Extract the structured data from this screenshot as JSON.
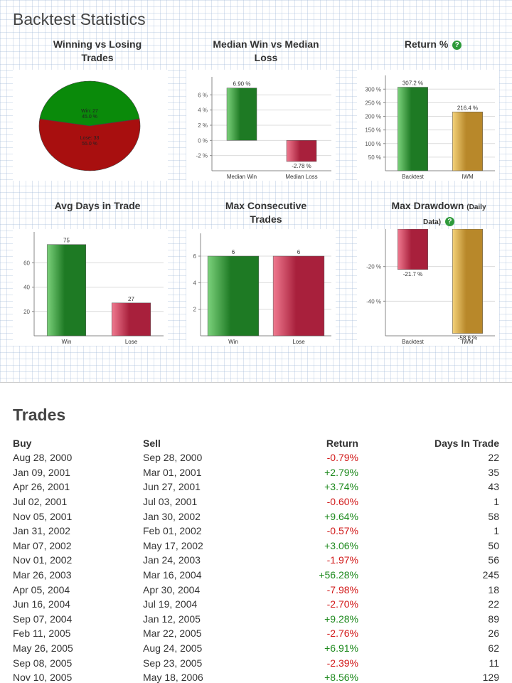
{
  "backtest": {
    "title": "Backtest Statistics",
    "help_symbol": "?",
    "charts": [
      {
        "key": "winlose",
        "title_line1": "Winning vs Losing",
        "title_line2": "Trades",
        "chart_data": {
          "type": "pie",
          "slices": [
            {
              "label": "Win: 27",
              "sub": "45.0 %",
              "value": 45.0,
              "color": "#0a8a0a"
            },
            {
              "label": "Lose: 33",
              "sub": "55.0 %",
              "value": 55.0,
              "color": "#a80f0f"
            }
          ]
        }
      },
      {
        "key": "median",
        "title_line1": "Median Win vs Median",
        "title_line2": "Loss",
        "chart_data": {
          "type": "bar",
          "categories": [
            "Median Win",
            "Median Loss"
          ],
          "values": [
            6.9,
            -2.78
          ],
          "value_labels": [
            "6.90 %",
            "-2.78 %"
          ],
          "ylim": [
            -4,
            8
          ],
          "ticks": [
            6,
            4,
            2,
            0,
            -2
          ],
          "tick_labels": [
            "6 %",
            "4 %",
            "2 %",
            "0 %",
            "-2 %"
          ]
        }
      },
      {
        "key": "return",
        "title_line1": "Return %",
        "title_line2": "",
        "chart_data": {
          "type": "bar",
          "categories": [
            "Backtest",
            "IWM"
          ],
          "values": [
            307.2,
            216.4
          ],
          "value_labels": [
            "307.2 %",
            "216.4 %"
          ],
          "ylim": [
            0,
            340
          ],
          "ticks": [
            300,
            250,
            200,
            150,
            100,
            50
          ],
          "tick_labels": [
            "300 %",
            "250 %",
            "200 %",
            "150 %",
            "100 %",
            "50 %"
          ]
        }
      },
      {
        "key": "avgdays",
        "title_line1": "Avg Days in Trade",
        "title_line2": "",
        "chart_data": {
          "type": "bar",
          "categories": [
            "Win",
            "Lose"
          ],
          "values": [
            75,
            27
          ],
          "value_labels": [
            "75",
            "27"
          ],
          "ylim": [
            0,
            83
          ],
          "ticks": [
            60,
            40,
            20
          ],
          "tick_labels": [
            "60",
            "40",
            "20"
          ]
        }
      },
      {
        "key": "consec",
        "title_line1": "Max Consecutive",
        "title_line2": "Trades",
        "chart_data": {
          "type": "bar",
          "categories": [
            "Win",
            "Lose"
          ],
          "values": [
            6,
            6
          ],
          "value_labels": [
            "6",
            "6"
          ],
          "ylim": [
            0,
            7.5
          ],
          "ticks": [
            6,
            4,
            2
          ],
          "tick_labels": [
            "6",
            "4",
            "2"
          ]
        }
      },
      {
        "key": "drawdown",
        "title_line1": "Max Drawdown",
        "title_small_a": "(Daily",
        "title_small_b": "Data)",
        "chart_data": {
          "type": "bar",
          "categories": [
            "Backtest",
            "IWM"
          ],
          "values": [
            -21.7,
            -58.6
          ],
          "value_labels": [
            "-21.7 %",
            "-58.6 %"
          ],
          "ylim": [
            -60,
            0
          ],
          "ticks": [
            -20,
            -40
          ],
          "tick_labels": [
            "-20 %",
            "-40 %"
          ]
        }
      }
    ]
  },
  "trades": {
    "title": "Trades",
    "headers": {
      "buy": "Buy",
      "sell": "Sell",
      "ret": "Return",
      "days": "Days In Trade"
    },
    "rows": [
      {
        "buy": "Aug 28, 2000",
        "sell": "Sep 28, 2000",
        "ret": "-0.79%",
        "days": "22"
      },
      {
        "buy": "Jan 09, 2001",
        "sell": "Mar 01, 2001",
        "ret": "+2.79%",
        "days": "35"
      },
      {
        "buy": "Apr 26, 2001",
        "sell": "Jun 27, 2001",
        "ret": "+3.74%",
        "days": "43"
      },
      {
        "buy": "Jul 02, 2001",
        "sell": "Jul 03, 2001",
        "ret": "-0.60%",
        "days": "1"
      },
      {
        "buy": "Nov 05, 2001",
        "sell": "Jan 30, 2002",
        "ret": "+9.64%",
        "days": "58"
      },
      {
        "buy": "Jan 31, 2002",
        "sell": "Feb 01, 2002",
        "ret": "-0.57%",
        "days": "1"
      },
      {
        "buy": "Mar 07, 2002",
        "sell": "May 17, 2002",
        "ret": "+3.06%",
        "days": "50"
      },
      {
        "buy": "Nov 01, 2002",
        "sell": "Jan 24, 2003",
        "ret": "-1.97%",
        "days": "56"
      },
      {
        "buy": "Mar 26, 2003",
        "sell": "Mar 16, 2004",
        "ret": "+56.28%",
        "days": "245"
      },
      {
        "buy": "Apr 05, 2004",
        "sell": "Apr 30, 2004",
        "ret": "-7.98%",
        "days": "18"
      },
      {
        "buy": "Jun 16, 2004",
        "sell": "Jul 19, 2004",
        "ret": "-2.70%",
        "days": "22"
      },
      {
        "buy": "Sep 07, 2004",
        "sell": "Jan 12, 2005",
        "ret": "+9.28%",
        "days": "89"
      },
      {
        "buy": "Feb 11, 2005",
        "sell": "Mar 22, 2005",
        "ret": "-2.76%",
        "days": "26"
      },
      {
        "buy": "May 26, 2005",
        "sell": "Aug 24, 2005",
        "ret": "+6.91%",
        "days": "62"
      },
      {
        "buy": "Sep 08, 2005",
        "sell": "Sep 23, 2005",
        "ret": "-2.39%",
        "days": "11"
      },
      {
        "buy": "Nov 10, 2005",
        "sell": "May 18, 2006",
        "ret": "+8.56%",
        "days": "129"
      }
    ]
  },
  "colors": {
    "positive": "#1e8a1e",
    "negative": "#d21a1a",
    "bar_green": "#2f9a36",
    "bar_red": "#c8324f",
    "bar_gold": "#d4a53c"
  }
}
